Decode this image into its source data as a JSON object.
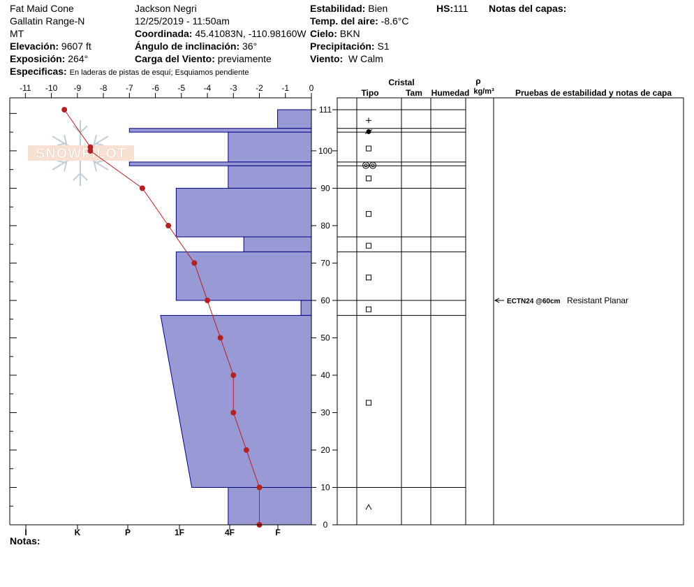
{
  "header": {
    "location": "Fat Maid Cone",
    "range": "Gallatin Range-N",
    "state": "MT",
    "elevation_label": "Elevación:",
    "elevation": "9607 ft",
    "aspect_label": "Exposición:",
    "aspect": "264°",
    "observer": "Jackson Negri",
    "datetime": "12/25/2019 - 11:50am",
    "coord_label": "Coordinada:",
    "coord": "45.41083N, -110.98160W",
    "slope_label": "Ángulo de inclinación:",
    "slope": "36°",
    "wind_load_label": "Carga del Viento:",
    "wind_load": "previamente",
    "stability_label": "Estabilidad:",
    "stability": "Bien",
    "air_temp_label": "Temp. del aire:",
    "air_temp": "-8.6°C",
    "sky_label": "Cielo:",
    "sky": "BKN",
    "precip_label": "Precipitación:",
    "precip": "S1",
    "wind_label": "Viento:",
    "wind": "W Calm",
    "hs_label": "HS:",
    "hs": "111",
    "layer_notes_label": "Notas del capas:",
    "specifics_label": "Especificas:",
    "specifics": "En laderas de pistas de esquí; Esquiamos pendiente",
    "notes_label": "Notas:"
  },
  "logo_text": "SNOWPILOT",
  "columns": {
    "crystal": "Cristal",
    "type": "Tipo",
    "size": "Tam",
    "moisture": "Humedad",
    "rho": "ρ",
    "density_unit": "kg/m³",
    "tests": "Pruebas de estabilidad y notas de capa"
  },
  "colors": {
    "hardness_fill": "#9999d6",
    "hardness_stroke": "#000080",
    "temp_line": "#b22222"
  },
  "chart_data": {
    "type": "snow-profile",
    "temp_axis": {
      "min": -11.6,
      "max": 0,
      "ticks": [
        -11,
        -10,
        -9,
        -8,
        -7,
        -6,
        -5,
        -4,
        -3,
        -2,
        -1,
        0
      ]
    },
    "depth_axis": {
      "min": 0,
      "max": 111,
      "ticks": [
        0,
        10,
        20,
        30,
        40,
        50,
        60,
        70,
        80,
        90,
        100
      ],
      "top_label": 111
    },
    "hardness_axis": {
      "labels": [
        "I",
        "K",
        "P",
        "1F",
        "4F",
        "F"
      ]
    },
    "temperature_profile": [
      {
        "depth": 111,
        "temp": -9.5
      },
      {
        "depth": 101,
        "temp": -8.5
      },
      {
        "depth": 100,
        "temp": -8.5
      },
      {
        "depth": 90,
        "temp": -6.5
      },
      {
        "depth": 80,
        "temp": -5.5
      },
      {
        "depth": 70,
        "temp": -4.5
      },
      {
        "depth": 60,
        "temp": -4.0
      },
      {
        "depth": 50,
        "temp": -3.5
      },
      {
        "depth": 40,
        "temp": -3.0
      },
      {
        "depth": 30,
        "temp": -3.0
      },
      {
        "depth": 20,
        "temp": -2.5
      },
      {
        "depth": 10,
        "temp": -2.0
      },
      {
        "depth": 0,
        "temp": -2.0
      }
    ],
    "layers": [
      {
        "top": 111,
        "bottom": 106,
        "hardness_temp_top": -1.3,
        "hardness_temp_bottom": -1.3,
        "grain": "plus"
      },
      {
        "top": 106,
        "bottom": 105,
        "hardness_temp_top": -7.0,
        "hardness_temp_bottom": -7.0,
        "grain": "filled-dot"
      },
      {
        "top": 105,
        "bottom": 97,
        "hardness_temp_top": -3.2,
        "hardness_temp_bottom": -3.2,
        "grain": "square"
      },
      {
        "top": 97,
        "bottom": 96,
        "hardness_temp_top": -7.0,
        "hardness_temp_bottom": -7.0,
        "grain": "double-circle"
      },
      {
        "top": 96,
        "bottom": 90,
        "hardness_temp_top": -3.2,
        "hardness_temp_bottom": -3.2,
        "grain": "square"
      },
      {
        "top": 90,
        "bottom": 77,
        "hardness_temp_top": -5.2,
        "hardness_temp_bottom": -5.2,
        "grain": "square"
      },
      {
        "top": 77,
        "bottom": 73,
        "hardness_temp_top": -2.6,
        "hardness_temp_bottom": -2.6,
        "grain": "square"
      },
      {
        "top": 73,
        "bottom": 60,
        "hardness_temp_top": -5.2,
        "hardness_temp_bottom": -5.2,
        "grain": "square"
      },
      {
        "top": 60,
        "bottom": 56,
        "hardness_temp_top": -0.4,
        "hardness_temp_bottom": -0.4,
        "grain": "square"
      },
      {
        "top": 56,
        "bottom": 10,
        "hardness_temp_top": -5.8,
        "hardness_temp_bottom": -4.6,
        "grain": "square"
      },
      {
        "top": 10,
        "bottom": 0,
        "hardness_temp_top": -3.2,
        "hardness_temp_bottom": -3.2,
        "grain": "caret"
      }
    ],
    "tests": [
      {
        "depth": 60,
        "code": "ECTN24 @60cm",
        "note": "Resistant Planar"
      }
    ]
  }
}
